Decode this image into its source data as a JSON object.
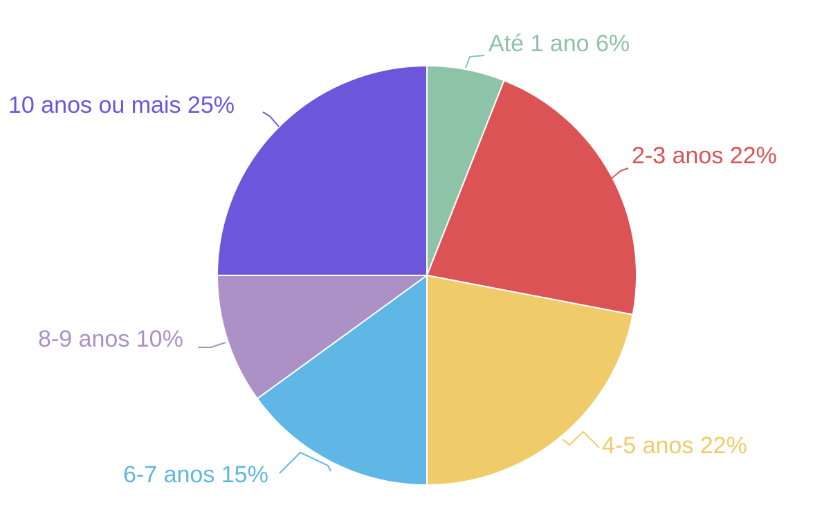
{
  "chart_data": {
    "type": "pie",
    "title": "",
    "start_angle_deg": 0,
    "direction": "clockwise",
    "slices": [
      {
        "label": "Até 1 ano 6%",
        "category": "Até 1 ano",
        "value": 6,
        "color": "#8DC3A7"
      },
      {
        "label": "2-3 anos 22%",
        "category": "2-3 anos",
        "value": 22,
        "color": "#DC5356"
      },
      {
        "label": "4-5 anos 22%",
        "category": "4-5 anos",
        "value": 22,
        "color": "#F0CB69"
      },
      {
        "label": "6-7 anos 15%",
        "category": "6-7 anos",
        "value": 15,
        "color": "#5FB7E5"
      },
      {
        "label": "8-9 anos 10%",
        "category": "8-9 anos",
        "value": 10,
        "color": "#AB91C5"
      },
      {
        "label": "10 anos ou mais 25%",
        "category": "10 anos ou mais",
        "value": 25,
        "color": "#6C56DC"
      }
    ]
  }
}
